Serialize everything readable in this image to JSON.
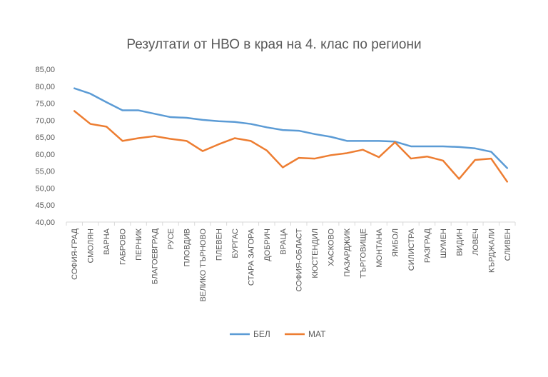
{
  "chart_data": {
    "type": "line",
    "title": "Резултати от НВО в края на 4. клас по региони",
    "xlabel": "",
    "ylabel": "",
    "ylim": [
      40,
      85
    ],
    "y_ticks": [
      "40,00",
      "45,00",
      "50,00",
      "55,00",
      "60,00",
      "65,00",
      "70,00",
      "75,00",
      "80,00",
      "85,00"
    ],
    "grid": false,
    "legend_position": "bottom",
    "categories": [
      "СОФИЯ-ГРАД",
      "СМОЛЯН",
      "ВАРНА",
      "ГАБРОВО",
      "ПЕРНИК",
      "БЛАГОЕВГРАД",
      "РУСЕ",
      "ПЛОВДИВ",
      "ВЕЛИКО ТЪРНОВО",
      "ПЛЕВЕН",
      "БУРГАС",
      "СТАРА ЗАГОРА",
      "ДОБРИЧ",
      "ВРАЦА",
      "СОФИЯ-ОБЛАСТ",
      "КЮСТЕНДИЛ",
      "ХАСКОВО",
      "ПАЗАРДЖИК",
      "ТЪРГОВИЩЕ",
      "МОНТАНА",
      "ЯМБОЛ",
      "СИЛИСТРА",
      "РАЗГРАД",
      "ШУМЕН",
      "ВИДИН",
      "ЛОВЕЧ",
      "КЪРДЖАЛИ",
      "СЛИВЕН"
    ],
    "series": [
      {
        "name": "БЕЛ",
        "color": "#5B9BD5",
        "values": [
          79.4,
          77.8,
          75.3,
          72.9,
          72.9,
          71.9,
          70.9,
          70.7,
          70.1,
          69.7,
          69.5,
          68.9,
          67.9,
          67.1,
          66.9,
          65.9,
          65.1,
          63.9,
          63.9,
          63.9,
          63.7,
          62.3,
          62.3,
          62.3,
          62.1,
          61.7,
          60.7,
          55.9
        ]
      },
      {
        "name": "МАТ",
        "color": "#ED7D31",
        "values": [
          72.7,
          68.9,
          68.1,
          63.9,
          64.7,
          65.3,
          64.5,
          63.9,
          60.9,
          62.9,
          64.7,
          63.9,
          61.1,
          56.1,
          58.9,
          58.7,
          59.7,
          60.3,
          61.3,
          59.1,
          63.5,
          58.7,
          59.3,
          58.1,
          52.7,
          58.3,
          58.7,
          51.9
        ]
      }
    ]
  }
}
